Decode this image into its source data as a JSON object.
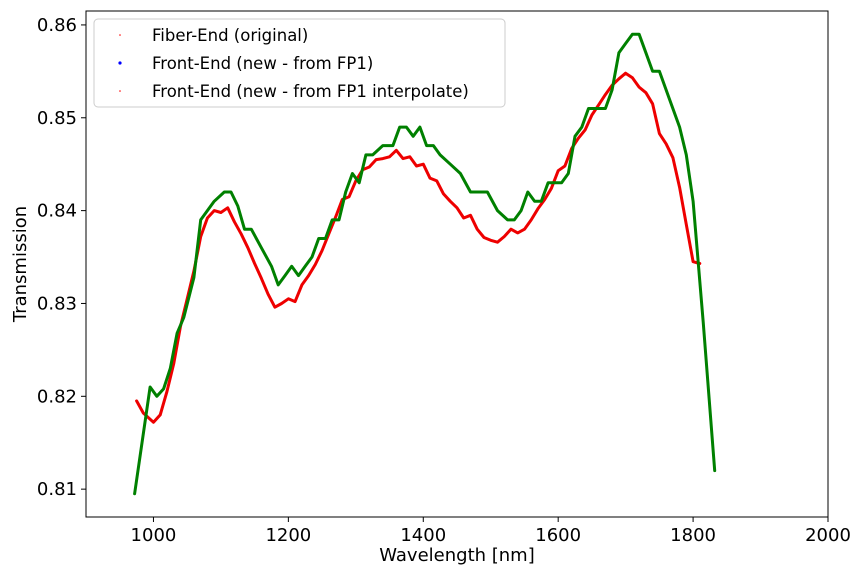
{
  "chart_data": {
    "type": "line",
    "title": "",
    "xlabel": "Wavelength [nm]",
    "ylabel": "Transmission",
    "xlim": [
      900,
      2000
    ],
    "ylim": [
      0.807,
      0.8615
    ],
    "xticks": [
      1000,
      1200,
      1400,
      1600,
      1800,
      2000
    ],
    "xtick_labels": [
      "1000",
      "1200",
      "1400",
      "1600",
      "1800",
      "2000"
    ],
    "yticks": [
      0.81,
      0.82,
      0.83,
      0.84,
      0.85,
      0.86
    ],
    "ytick_labels": [
      "0.81",
      "0.82",
      "0.83",
      "0.84",
      "0.85",
      "0.86"
    ],
    "grid": false,
    "legend_position": "top-left",
    "legend": [
      {
        "label": "Fiber-End (original)",
        "color": "#ff0000",
        "marker": "small-dot"
      },
      {
        "label": "Front-End (new - from FP1)",
        "color": "#0000ff",
        "marker": "dot"
      },
      {
        "label": "Front-End (new - from FP1 interpolate)",
        "color": "#ff0000",
        "marker": "small-dot"
      }
    ],
    "series": [
      {
        "name": "Fiber-End (original)",
        "color": "#ee0000",
        "x": [
          975,
          985,
          1000,
          1010,
          1020,
          1030,
          1040,
          1050,
          1060,
          1070,
          1080,
          1090,
          1100,
          1110,
          1120,
          1130,
          1140,
          1150,
          1160,
          1170,
          1180,
          1190,
          1200,
          1210,
          1220,
          1230,
          1240,
          1250,
          1260,
          1270,
          1280,
          1290,
          1300,
          1310,
          1320,
          1330,
          1340,
          1350,
          1360,
          1370,
          1380,
          1390,
          1400,
          1410,
          1420,
          1430,
          1440,
          1450,
          1460,
          1470,
          1480,
          1490,
          1500,
          1510,
          1520,
          1530,
          1540,
          1550,
          1560,
          1570,
          1580,
          1590,
          1600,
          1610,
          1620,
          1630,
          1640,
          1650,
          1660,
          1670,
          1680,
          1690,
          1700,
          1710,
          1720,
          1730,
          1740,
          1750,
          1760,
          1770,
          1780,
          1790,
          1800,
          1810
        ],
        "y": [
          0.8195,
          0.8182,
          0.8172,
          0.818,
          0.8205,
          0.8235,
          0.8275,
          0.8305,
          0.8335,
          0.8372,
          0.8392,
          0.84,
          0.8398,
          0.8403,
          0.8388,
          0.8375,
          0.836,
          0.8343,
          0.8327,
          0.831,
          0.8296,
          0.83,
          0.8305,
          0.8302,
          0.832,
          0.833,
          0.8342,
          0.8357,
          0.8375,
          0.8393,
          0.8412,
          0.8415,
          0.8432,
          0.8444,
          0.8447,
          0.8455,
          0.8456,
          0.8458,
          0.8465,
          0.8456,
          0.8458,
          0.8448,
          0.845,
          0.8435,
          0.8432,
          0.8418,
          0.841,
          0.8403,
          0.8392,
          0.8395,
          0.838,
          0.8371,
          0.8368,
          0.8366,
          0.8372,
          0.838,
          0.8376,
          0.838,
          0.839,
          0.8402,
          0.8412,
          0.8424,
          0.8443,
          0.8448,
          0.8467,
          0.8478,
          0.8487,
          0.8503,
          0.8514,
          0.8525,
          0.8535,
          0.8542,
          0.8548,
          0.8543,
          0.8533,
          0.8527,
          0.8515,
          0.8483,
          0.8472,
          0.8457,
          0.8425,
          0.8385,
          0.8345,
          0.8343
        ]
      },
      {
        "name": "Front-End (new - from FP1)",
        "color": "#008000",
        "x": [
          972,
          995,
          1005,
          1015,
          1025,
          1035,
          1045,
          1060,
          1070,
          1080,
          1090,
          1105,
          1115,
          1125,
          1135,
          1145,
          1160,
          1175,
          1185,
          1195,
          1205,
          1215,
          1225,
          1235,
          1245,
          1255,
          1265,
          1275,
          1285,
          1295,
          1305,
          1315,
          1325,
          1340,
          1355,
          1365,
          1375,
          1385,
          1395,
          1405,
          1415,
          1425,
          1440,
          1455,
          1470,
          1480,
          1495,
          1510,
          1525,
          1535,
          1545,
          1555,
          1565,
          1575,
          1585,
          1595,
          1605,
          1615,
          1625,
          1635,
          1645,
          1655,
          1670,
          1680,
          1690,
          1700,
          1710,
          1720,
          1730,
          1740,
          1750,
          1765,
          1780,
          1790,
          1800,
          1815,
          1832
        ],
        "y": [
          0.8095,
          0.821,
          0.82,
          0.8208,
          0.823,
          0.8268,
          0.8285,
          0.8328,
          0.839,
          0.84,
          0.841,
          0.842,
          0.842,
          0.8405,
          0.838,
          0.838,
          0.836,
          0.834,
          0.832,
          0.833,
          0.834,
          0.833,
          0.834,
          0.835,
          0.837,
          0.837,
          0.839,
          0.839,
          0.842,
          0.844,
          0.843,
          0.846,
          0.846,
          0.847,
          0.847,
          0.849,
          0.849,
          0.848,
          0.849,
          0.847,
          0.847,
          0.846,
          0.845,
          0.844,
          0.842,
          0.842,
          0.842,
          0.84,
          0.839,
          0.839,
          0.84,
          0.842,
          0.841,
          0.841,
          0.843,
          0.843,
          0.843,
          0.844,
          0.848,
          0.849,
          0.851,
          0.851,
          0.851,
          0.853,
          0.857,
          0.858,
          0.859,
          0.859,
          0.857,
          0.855,
          0.855,
          0.852,
          0.849,
          0.846,
          0.841,
          0.828,
          0.812
        ]
      }
    ]
  }
}
